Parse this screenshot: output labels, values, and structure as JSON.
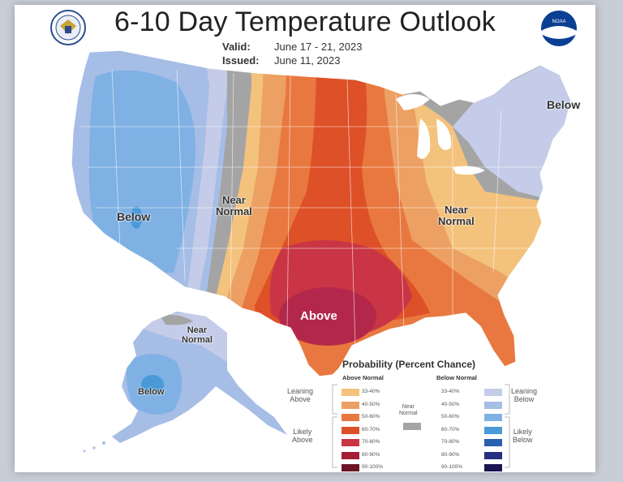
{
  "title": "6-10 Day Temperature Outlook",
  "valid_label": "Valid:",
  "valid_value": "June 17 - 21, 2023",
  "issued_label": "Issued:",
  "issued_value": "June 11, 2023",
  "logos": {
    "left": "commerce-seal-icon",
    "right": "noaa-logo-icon",
    "right_text": "NOAA"
  },
  "map_labels": {
    "west_below": "Below",
    "northeast_below": "Below",
    "plains_near_normal": "Near\nNormal",
    "southeast_near_normal": "Near\nNormal",
    "texas_above": "Above",
    "alaska_near_normal": "Near\nNormal",
    "alaska_below": "Below"
  },
  "legend": {
    "title": "Probability (Percent Chance)",
    "above_header": "Above Normal",
    "below_header": "Below Normal",
    "leaning_above": "Leaning\nAbove",
    "likely_above": "Likely\nAbove",
    "near_normal": "Near\nNormal",
    "leaning_below": "Leaning\nBelow",
    "likely_below": "Likely\nBelow",
    "above_bins": [
      {
        "label": "33-40%",
        "color": "#f3c27d"
      },
      {
        "label": "40-50%",
        "color": "#eda063"
      },
      {
        "label": "50-60%",
        "color": "#e8783f"
      },
      {
        "label": "60-70%",
        "color": "#dd5028"
      },
      {
        "label": "70-80%",
        "color": "#c93545"
      },
      {
        "label": "80-90%",
        "color": "#a51d35"
      },
      {
        "label": "90-100%",
        "color": "#6b1524"
      }
    ],
    "below_bins": [
      {
        "label": "33-40%",
        "color": "#c5cce9"
      },
      {
        "label": "40-50%",
        "color": "#a6bde6"
      },
      {
        "label": "50-60%",
        "color": "#7fb1e4"
      },
      {
        "label": "60-70%",
        "color": "#4a9ad8"
      },
      {
        "label": "70-80%",
        "color": "#2a5fb0"
      },
      {
        "label": "80-90%",
        "color": "#22307f"
      },
      {
        "label": "90-100%",
        "color": "#1b1550"
      }
    ],
    "near_color": "#a4a4a4"
  }
}
